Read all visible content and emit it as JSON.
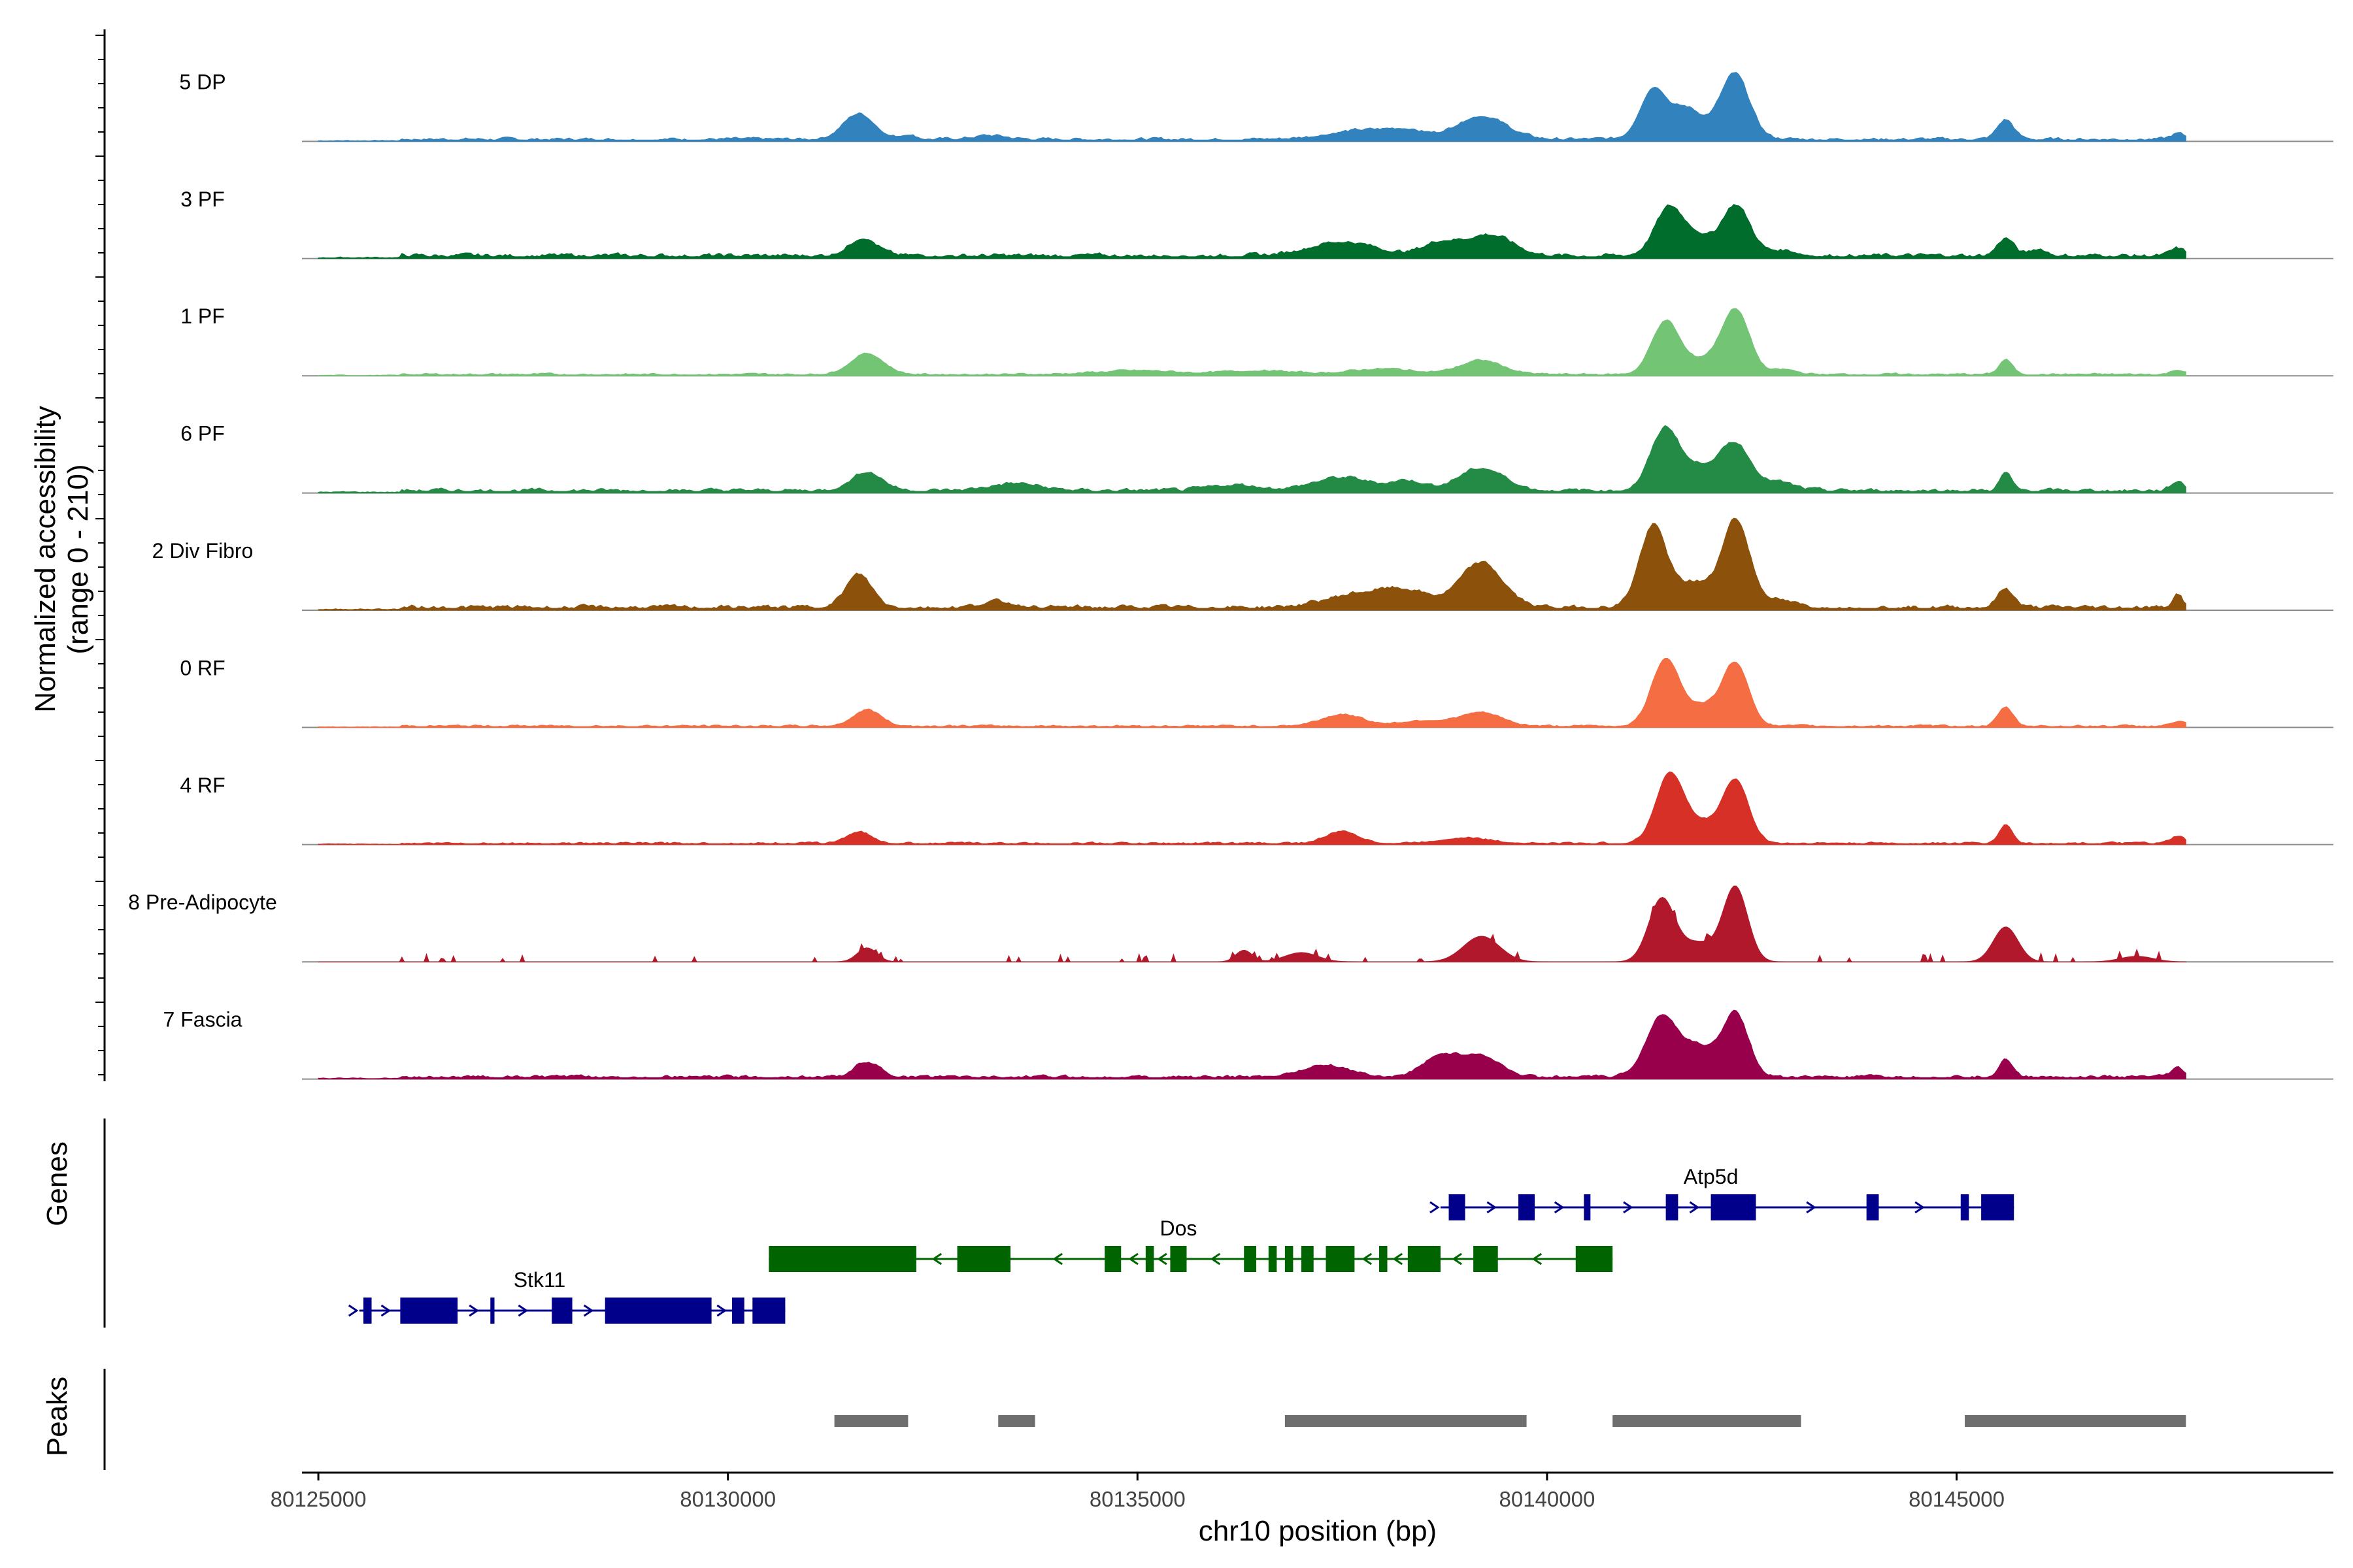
{
  "chart_data": {
    "type": "area",
    "title": "",
    "ylabel_line1": "Normalized accessibility",
    "ylabel_line2": "(range 0 - 210)",
    "xlabel": "chr10 position (bp)",
    "chromosome": "chr10",
    "xlim": [
      80124800,
      80149600
    ],
    "data_start": 80125000,
    "data_end": 80147800,
    "y_range": [
      0,
      210
    ],
    "x_ticks": [
      80125000,
      80130000,
      80135000,
      80140000,
      80145000
    ],
    "x_tick_labels": [
      "80125000",
      "80130000",
      "80135000",
      "80140000",
      "80145000"
    ],
    "tracks": [
      {
        "name": "5 DP",
        "color": "#3182bd",
        "sparse": false,
        "baseline": 6,
        "noise": 4,
        "peaks": [
          [
            80131600,
            55,
            190
          ],
          [
            80132200,
            10,
            100
          ],
          [
            80133200,
            8,
            200
          ],
          [
            80137800,
            20,
            450
          ],
          [
            80139200,
            50,
            300
          ],
          [
            80138300,
            12,
            200
          ],
          [
            80141300,
            100,
            160
          ],
          [
            80141700,
            38,
            150
          ],
          [
            80142300,
            125,
            170
          ],
          [
            80141850,
            30,
            400
          ],
          [
            80145600,
            42,
            100
          ],
          [
            80147700,
            12,
            80
          ]
        ]
      },
      {
        "name": "3 PF",
        "color": "#006d2c",
        "sparse": false,
        "baseline": 8,
        "noise": 5,
        "peaks": [
          [
            80131650,
            38,
            170
          ],
          [
            80137500,
            30,
            400
          ],
          [
            80138700,
            28,
            220
          ],
          [
            80139300,
            45,
            280
          ],
          [
            80141500,
            105,
            180
          ],
          [
            80141850,
            32,
            140
          ],
          [
            80142300,
            110,
            180
          ],
          [
            80142900,
            12,
            150
          ],
          [
            80145600,
            38,
            100
          ],
          [
            80146000,
            15,
            100
          ],
          [
            80147700,
            15,
            80
          ]
        ]
      },
      {
        "name": "1 PF",
        "color": "#74c476",
        "sparse": false,
        "baseline": 4,
        "noise": 3,
        "peaks": [
          [
            80131700,
            45,
            200
          ],
          [
            80135000,
            8,
            500
          ],
          [
            80136500,
            8,
            400
          ],
          [
            80138000,
            12,
            400
          ],
          [
            80139200,
            30,
            260
          ],
          [
            80141450,
            115,
            170
          ],
          [
            80141900,
            28,
            180
          ],
          [
            80142300,
            140,
            170
          ],
          [
            80142900,
            10,
            150
          ],
          [
            80145600,
            32,
            80
          ],
          [
            80147700,
            10,
            80
          ]
        ]
      },
      {
        "name": "6 PF",
        "color": "#238b45",
        "sparse": false,
        "baseline": 7,
        "noise": 5,
        "peaks": [
          [
            80131700,
            40,
            190
          ],
          [
            80133500,
            15,
            300
          ],
          [
            80136200,
            12,
            300
          ],
          [
            80137500,
            28,
            350
          ],
          [
            80138300,
            20,
            200
          ],
          [
            80139200,
            48,
            280
          ],
          [
            80141450,
            135,
            180
          ],
          [
            80142300,
            100,
            180
          ],
          [
            80141900,
            45,
            180
          ],
          [
            80142800,
            18,
            200
          ],
          [
            80145600,
            38,
            70
          ],
          [
            80147700,
            20,
            80
          ]
        ]
      },
      {
        "name": "2 Div Fibro",
        "color": "#8c510a",
        "sparse": false,
        "baseline": 8,
        "noise": 6,
        "peaks": [
          [
            80131600,
            70,
            160
          ],
          [
            80133300,
            12,
            200
          ],
          [
            80137700,
            28,
            400
          ],
          [
            80138300,
            30,
            300
          ],
          [
            80139200,
            95,
            260
          ],
          [
            80141300,
            175,
            170
          ],
          [
            80141800,
            52,
            180
          ],
          [
            80142300,
            190,
            170
          ],
          [
            80142800,
            15,
            200
          ],
          [
            80145600,
            40,
            100
          ],
          [
            80147700,
            30,
            60
          ]
        ]
      },
      {
        "name": "0 RF",
        "color": "#f46d43",
        "sparse": false,
        "baseline": 4,
        "noise": 3,
        "peaks": [
          [
            80131700,
            35,
            170
          ],
          [
            80137500,
            25,
            250
          ],
          [
            80138500,
            12,
            300
          ],
          [
            80139200,
            28,
            250
          ],
          [
            80141450,
            145,
            170
          ],
          [
            80141900,
            40,
            180
          ],
          [
            80142300,
            135,
            160
          ],
          [
            80145600,
            40,
            90
          ],
          [
            80147700,
            10,
            80
          ]
        ]
      },
      {
        "name": "4 RF",
        "color": "#d73027",
        "sparse": false,
        "baseline": 4,
        "noise": 3,
        "peaks": [
          [
            80131600,
            25,
            150
          ],
          [
            80137500,
            25,
            200
          ],
          [
            80139000,
            12,
            300
          ],
          [
            80141500,
            150,
            170
          ],
          [
            80141900,
            38,
            180
          ],
          [
            80142300,
            135,
            160
          ],
          [
            80145600,
            40,
            80
          ],
          [
            80147700,
            15,
            80
          ]
        ]
      },
      {
        "name": "8 Pre-Adipocyte",
        "color": "#b2182b",
        "sparse": true,
        "baseline": 2,
        "noise": 5,
        "peaks": [
          [
            80131700,
            30,
            120
          ],
          [
            80136300,
            25,
            100
          ],
          [
            80137000,
            20,
            200
          ],
          [
            80139200,
            55,
            220
          ],
          [
            80141400,
            135,
            160
          ],
          [
            80141850,
            40,
            200
          ],
          [
            80142300,
            160,
            150
          ],
          [
            80145600,
            75,
            150
          ],
          [
            80147200,
            12,
            200
          ]
        ]
      },
      {
        "name": "7 Fascia",
        "color": "#99004c",
        "sparse": false,
        "baseline": 6,
        "noise": 5,
        "peaks": [
          [
            80131700,
            32,
            150
          ],
          [
            80137300,
            25,
            300
          ],
          [
            80138700,
            45,
            220
          ],
          [
            80139200,
            45,
            230
          ],
          [
            80141400,
            130,
            190
          ],
          [
            80141850,
            60,
            200
          ],
          [
            80142300,
            135,
            160
          ],
          [
            80145600,
            40,
            80
          ],
          [
            80147700,
            18,
            80
          ]
        ]
      }
    ],
    "genes_panel_label": "Genes",
    "peaks_panel_label": "Peaks",
    "genes": [
      {
        "name": "Atp5d",
        "strand": "+",
        "color": "#00008b",
        "row": 0,
        "start": 80138700,
        "end": 80145700,
        "label_pos": 80142000,
        "exons": [
          [
            80138800,
            80139000
          ],
          [
            80139650,
            80139850
          ],
          [
            80140450,
            80140530
          ],
          [
            80141450,
            80141600
          ],
          [
            80142000,
            80142550
          ],
          [
            80143900,
            80144050
          ],
          [
            80145050,
            80145150
          ],
          [
            80145300,
            80145700
          ]
        ]
      },
      {
        "name": "Dos",
        "strand": "-",
        "color": "#006400",
        "row": 1,
        "start": 80130500,
        "end": 80140800,
        "label_pos": 80135500,
        "exons": [
          [
            80130500,
            80132300
          ],
          [
            80132800,
            80133450
          ],
          [
            80134600,
            80134800
          ],
          [
            80135100,
            80135200
          ],
          [
            80135400,
            80135600
          ],
          [
            80136300,
            80136450
          ],
          [
            80136600,
            80136700
          ],
          [
            80136800,
            80136900
          ],
          [
            80137000,
            80137150
          ],
          [
            80137300,
            80137650
          ],
          [
            80137950,
            80138050
          ],
          [
            80138300,
            80138700
          ],
          [
            80139100,
            80139400
          ],
          [
            80140350,
            80140800
          ]
        ]
      },
      {
        "name": "Stk11",
        "strand": "+",
        "color": "#00008b",
        "row": 2,
        "start": 80125500,
        "end": 80130700,
        "label_pos": 80127700,
        "exons": [
          [
            80125550,
            80125650
          ],
          [
            80126000,
            80126700
          ],
          [
            80127100,
            80127150
          ],
          [
            80127850,
            80128100
          ],
          [
            80128500,
            80129800
          ],
          [
            80130050,
            80130200
          ],
          [
            80130300,
            80130700
          ]
        ]
      }
    ],
    "peak_regions": [
      [
        80131300,
        80132200
      ],
      [
        80133300,
        80133750
      ],
      [
        80136800,
        80139750
      ],
      [
        80140800,
        80143100
      ],
      [
        80145100,
        80147800
      ]
    ]
  }
}
